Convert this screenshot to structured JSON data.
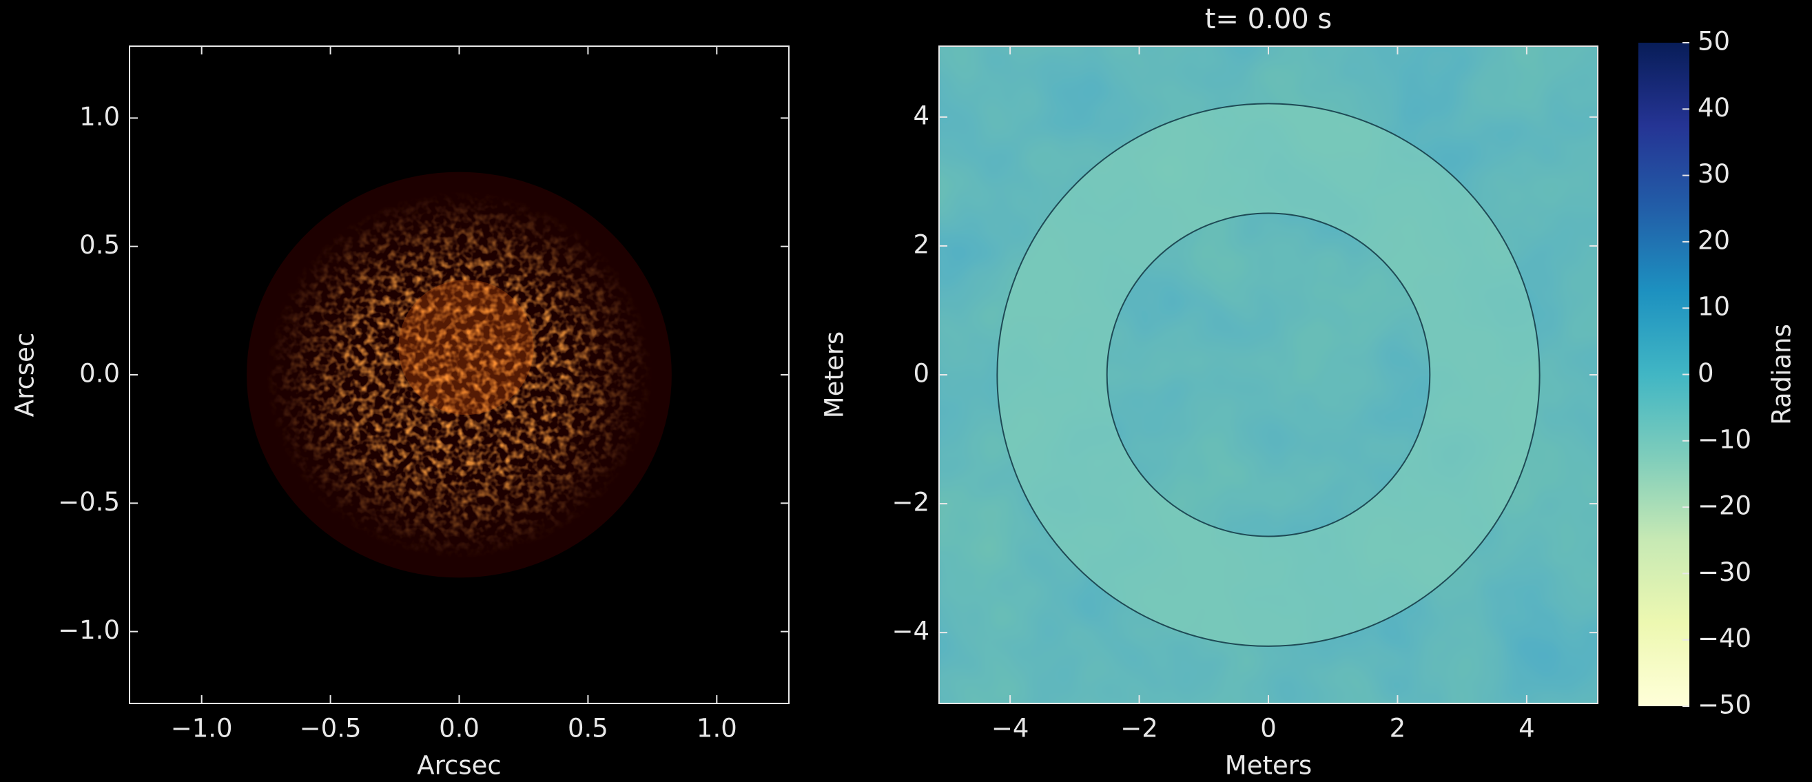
{
  "chart_data": [
    {
      "type": "image",
      "xlabel": "Arcsec",
      "ylabel": "Arcsec",
      "xlim": [
        -1.28,
        1.28
      ],
      "ylim": [
        -1.28,
        1.28
      ],
      "xticks": [
        {
          "value": -1,
          "label": "−1.0"
        },
        {
          "value": -0.5,
          "label": "−0.5"
        },
        {
          "value": 0,
          "label": "0.0"
        },
        0.5,
        {
          "value": 1,
          "label": "1.0"
        }
      ],
      "yticks": [
        {
          "value": -1,
          "label": "−1.0"
        },
        {
          "value": -0.5,
          "label": "−0.5"
        },
        {
          "value": 0,
          "label": "0.0"
        },
        0.5,
        {
          "value": 1,
          "label": "1.0"
        }
      ],
      "colormap": [
        "#ffe070",
        "#ff6a10",
        "#b01a00",
        "#3a0000",
        "#000000"
      ]
    },
    {
      "type": "image",
      "title": "t= 0.00 s",
      "xlabel": "Meters",
      "ylabel": "Meters",
      "xlim": [
        -5.1,
        5.1
      ],
      "ylim": [
        -5.1,
        5.1
      ],
      "xticks": [
        {
          "value": -4,
          "label": "−4"
        },
        {
          "value": -2,
          "label": "−2"
        },
        0,
        2,
        4
      ],
      "yticks": [
        {
          "value": -4,
          "label": "−4"
        },
        {
          "value": -2,
          "label": "−2"
        },
        0,
        2,
        4
      ],
      "annulus": {
        "outer_radius": 4.2,
        "inner_radius": 2.5
      },
      "colorbar": {
        "label": "Radians",
        "lim": [
          -50,
          50
        ],
        "ticks": [
          {
            "value": -50,
            "label": "−50"
          },
          {
            "value": -40,
            "label": "−40"
          },
          {
            "value": -30,
            "label": "−30"
          },
          {
            "value": -20,
            "label": "−20"
          },
          {
            "value": -10,
            "label": "−10"
          },
          0,
          10,
          20,
          30,
          40,
          50
        ]
      },
      "colormap": [
        "#081d58",
        "#253494",
        "#225ea8",
        "#1d91c0",
        "#41b6c4",
        "#7fcdbb",
        "#c7e9b4",
        "#edf8b1",
        "#ffffd9"
      ]
    }
  ]
}
